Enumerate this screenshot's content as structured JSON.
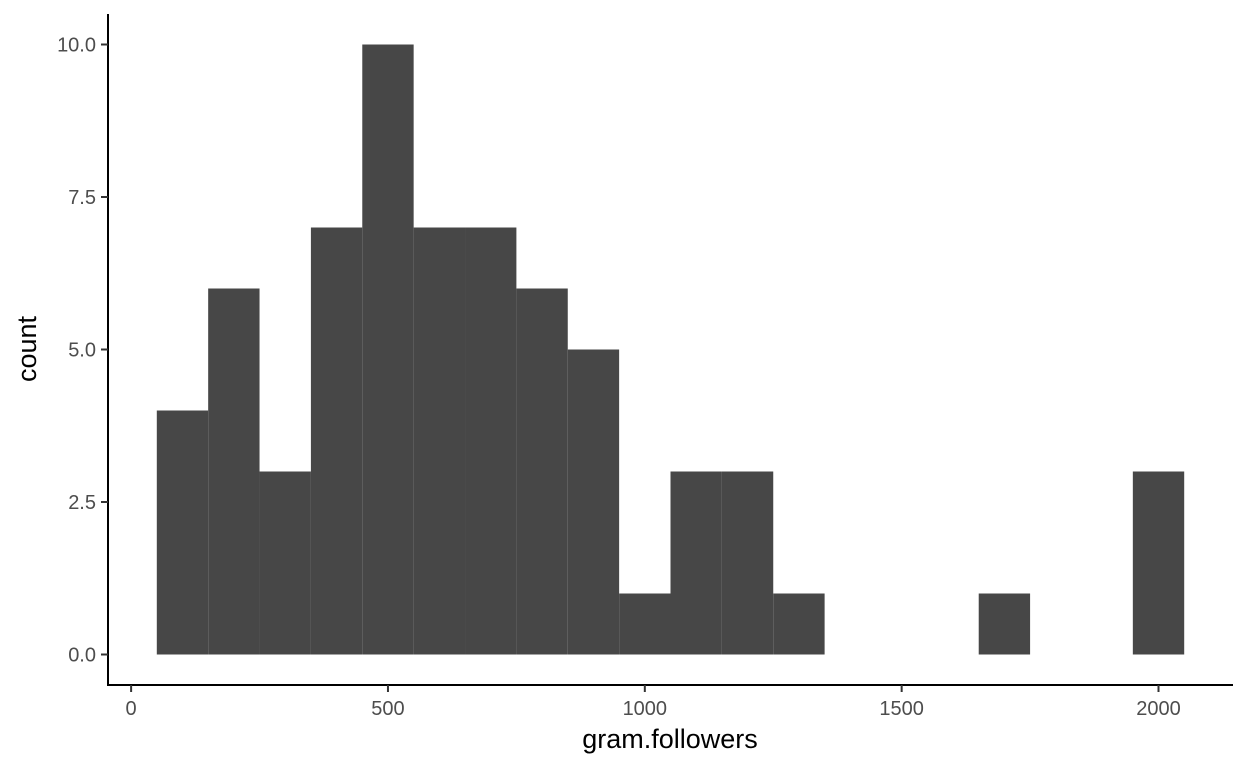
{
  "chart_data": {
    "type": "bar",
    "title": "",
    "xlabel": "gram.followers",
    "ylabel": "count",
    "bin_width": 100,
    "bins": [
      {
        "start": 50,
        "end": 150,
        "count": 4
      },
      {
        "start": 150,
        "end": 250,
        "count": 6
      },
      {
        "start": 250,
        "end": 350,
        "count": 3
      },
      {
        "start": 350,
        "end": 450,
        "count": 7
      },
      {
        "start": 450,
        "end": 550,
        "count": 10
      },
      {
        "start": 550,
        "end": 650,
        "count": 7
      },
      {
        "start": 650,
        "end": 750,
        "count": 7
      },
      {
        "start": 750,
        "end": 850,
        "count": 6
      },
      {
        "start": 850,
        "end": 950,
        "count": 5
      },
      {
        "start": 950,
        "end": 1050,
        "count": 1
      },
      {
        "start": 1050,
        "end": 1150,
        "count": 3
      },
      {
        "start": 1150,
        "end": 1250,
        "count": 3
      },
      {
        "start": 1250,
        "end": 1350,
        "count": 1
      },
      {
        "start": 1350,
        "end": 1450,
        "count": 0
      },
      {
        "start": 1450,
        "end": 1550,
        "count": 0
      },
      {
        "start": 1550,
        "end": 1650,
        "count": 0
      },
      {
        "start": 1650,
        "end": 1750,
        "count": 1
      },
      {
        "start": 1750,
        "end": 1850,
        "count": 0
      },
      {
        "start": 1850,
        "end": 1950,
        "count": 0
      },
      {
        "start": 1950,
        "end": 2050,
        "count": 3
      }
    ],
    "xlim": [
      -45,
      2145
    ],
    "ylim": [
      -0.5,
      10.5
    ],
    "x_ticks": [
      0,
      500,
      1000,
      1500,
      2000
    ],
    "x_tick_labels": [
      "0",
      "500",
      "1000",
      "1500",
      "2000"
    ],
    "y_ticks": [
      0,
      2.5,
      5,
      7.5,
      10
    ],
    "y_tick_labels": [
      "0.0",
      "2.5",
      "5.0",
      "7.5",
      "10.0"
    ],
    "bar_color": "#474747",
    "grid": false
  }
}
